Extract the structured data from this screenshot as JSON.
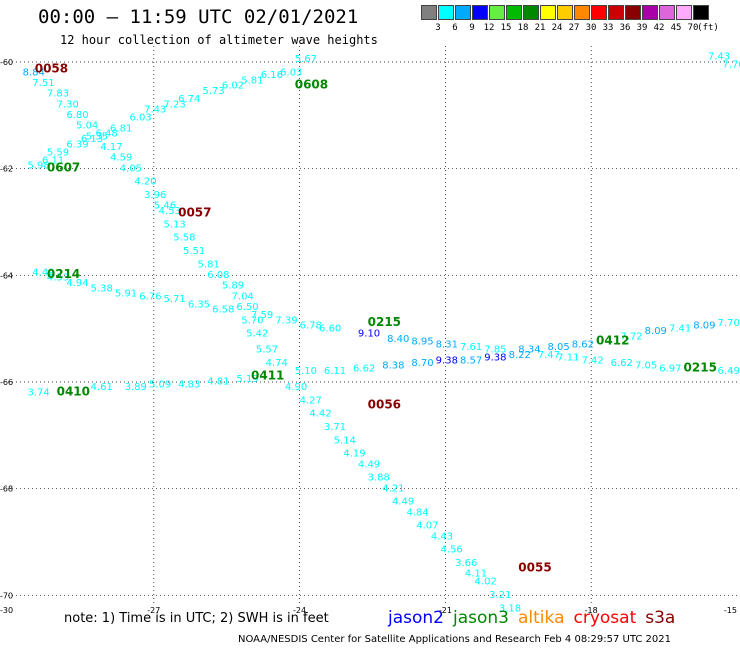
{
  "header": {
    "title": "00:00 – 11:59 UTC 02/01/2021",
    "subtitle": "12 hour collection of altimeter wave heights"
  },
  "legend": {
    "unit": "(ft)",
    "bins": [
      {
        "label": "3",
        "color": "#808080"
      },
      {
        "label": "6",
        "color": "#00ffff"
      },
      {
        "label": "9",
        "color": "#00aaff"
      },
      {
        "label": "12",
        "color": "#0000ff"
      },
      {
        "label": "15",
        "color": "#66ee44"
      },
      {
        "label": "18",
        "color": "#00bb00"
      },
      {
        "label": "21",
        "color": "#008800"
      },
      {
        "label": "24",
        "color": "#ffff00"
      },
      {
        "label": "27",
        "color": "#ffcc00"
      },
      {
        "label": "30",
        "color": "#ff8800"
      },
      {
        "label": "33",
        "color": "#ff0000"
      },
      {
        "label": "36",
        "color": "#cc0000"
      },
      {
        "label": "39",
        "color": "#880000"
      },
      {
        "label": "42",
        "color": "#aa00aa"
      },
      {
        "label": "45",
        "color": "#dd66dd"
      },
      {
        "label": "70",
        "color": "#ffaaff"
      },
      {
        "label": "",
        "color": "#000000"
      }
    ]
  },
  "axes": {
    "lat_labels": [
      "-60",
      "-62",
      "-64",
      "-66",
      "-68",
      "-70"
    ],
    "lat_values": [
      -60,
      -62,
      -64,
      -66,
      -68,
      -70
    ],
    "lon_labels": [
      "-30",
      "-27",
      "-24",
      "-21",
      "-18",
      "-15"
    ],
    "lon_values": [
      -30,
      -27,
      -24,
      -21,
      -18,
      -15
    ],
    "lat_range": [
      -70.2,
      -59.7
    ],
    "lon_range": [
      -30,
      -15
    ],
    "grid": "dotted"
  },
  "footer": {
    "note": "note:  1) Time is in UTC;  2) SWH is in feet",
    "credit": "NOAA/NESDIS Center for Satellite Applications and Research     Feb  4 08:29:57 UTC 2021",
    "satellites": [
      {
        "name": "jason2",
        "color": "#0000ff"
      },
      {
        "name": "jason3",
        "color": "#008800"
      },
      {
        "name": "altika",
        "color": "#ff8800"
      },
      {
        "name": "cryosat",
        "color": "#ff0000"
      },
      {
        "name": "s3a",
        "color": "#880000"
      }
    ]
  },
  "passes": [
    {
      "time": "0058",
      "color": "#880000",
      "lon": -29.45,
      "lat": -60.2
    },
    {
      "time": "0608",
      "color": "#008800",
      "lon": -24.1,
      "lat": -60.5
    },
    {
      "time": "0607",
      "color": "#008800",
      "lon": -29.2,
      "lat": -62.05
    },
    {
      "time": "0057",
      "color": "#880000",
      "lon": -26.5,
      "lat": -62.9
    },
    {
      "time": "0214",
      "color": "#008800",
      "lon": -29.2,
      "lat": -64.05
    },
    {
      "time": "0215",
      "color": "#008800",
      "lon": -22.6,
      "lat": -64.95
    },
    {
      "time": "0412",
      "color": "#008800",
      "lon": -17.9,
      "lat": -65.3
    },
    {
      "time": "0215",
      "color": "#008800",
      "lon": -16.1,
      "lat": -65.8
    },
    {
      "time": "0411",
      "color": "#008800",
      "lon": -25.0,
      "lat": -65.95
    },
    {
      "time": "0410",
      "color": "#008800",
      "lon": -29.0,
      "lat": -66.25
    },
    {
      "time": "0056",
      "color": "#880000",
      "lon": -22.6,
      "lat": -66.5
    },
    {
      "time": "0055",
      "color": "#880000",
      "lon": -19.5,
      "lat": -69.55
    }
  ],
  "observations": [
    {
      "v": "8.84",
      "lon": -29.7,
      "lat": -60.25,
      "c": "#00aaff"
    },
    {
      "v": "7.51",
      "lon": -29.5,
      "lat": -60.45,
      "c": "#00ffff"
    },
    {
      "v": "7.83",
      "lon": -29.2,
      "lat": -60.65,
      "c": "#00ffff"
    },
    {
      "v": "7.30",
      "lon": -29.0,
      "lat": -60.85,
      "c": "#00ffff"
    },
    {
      "v": "6.80",
      "lon": -28.8,
      "lat": -61.05,
      "c": "#00ffff"
    },
    {
      "v": "5.04",
      "lon": -28.6,
      "lat": -61.25,
      "c": "#00ffff"
    },
    {
      "v": "5.35",
      "lon": -28.4,
      "lat": -61.45,
      "c": "#00ffff"
    },
    {
      "v": "4.17",
      "lon": -28.1,
      "lat": -61.65,
      "c": "#00ffff"
    },
    {
      "v": "4.59",
      "lon": -27.9,
      "lat": -61.85,
      "c": "#00ffff"
    },
    {
      "v": "4.05",
      "lon": -27.7,
      "lat": -62.05,
      "c": "#00ffff"
    },
    {
      "v": "4.20",
      "lon": -27.4,
      "lat": -62.3,
      "c": "#00ffff"
    },
    {
      "v": "3.96",
      "lon": -27.2,
      "lat": -62.55,
      "c": "#00ffff"
    },
    {
      "v": "5.46",
      "lon": -27.0,
      "lat": -62.75,
      "c": "#00ffff"
    },
    {
      "v": "4.53",
      "lon": -26.9,
      "lat": -62.85,
      "c": "#00ffff"
    },
    {
      "v": "5.13",
      "lon": -26.8,
      "lat": -63.1,
      "c": "#00ffff"
    },
    {
      "v": "5.58",
      "lon": -26.6,
      "lat": -63.35,
      "c": "#00ffff"
    },
    {
      "v": "5.51",
      "lon": -26.4,
      "lat": -63.6,
      "c": "#00ffff"
    },
    {
      "v": "5.81",
      "lon": -26.1,
      "lat": -63.85,
      "c": "#00ffff"
    },
    {
      "v": "6.08",
      "lon": -25.9,
      "lat": -64.05,
      "c": "#00ffff"
    },
    {
      "v": "5.89",
      "lon": -25.6,
      "lat": -64.25,
      "c": "#00ffff"
    },
    {
      "v": "7.04",
      "lon": -25.4,
      "lat": -64.45,
      "c": "#00ffff"
    },
    {
      "v": "6.50",
      "lon": -25.3,
      "lat": -64.65,
      "c": "#00ffff"
    },
    {
      "v": "5.70",
      "lon": -25.2,
      "lat": -64.9,
      "c": "#00ffff"
    },
    {
      "v": "5.42",
      "lon": -25.1,
      "lat": -65.15,
      "c": "#00ffff"
    },
    {
      "v": "5.57",
      "lon": -24.9,
      "lat": -65.45,
      "c": "#00ffff"
    },
    {
      "v": "4.74",
      "lon": -24.7,
      "lat": -65.7,
      "c": "#00ffff"
    },
    {
      "v": "4.90",
      "lon": -24.3,
      "lat": -66.15,
      "c": "#00ffff"
    },
    {
      "v": "4.27",
      "lon": -24.0,
      "lat": -66.4,
      "c": "#00ffff"
    },
    {
      "v": "4.42",
      "lon": -23.8,
      "lat": -66.65,
      "c": "#00ffff"
    },
    {
      "v": "3.71",
      "lon": -23.5,
      "lat": -66.9,
      "c": "#00ffff"
    },
    {
      "v": "5.14",
      "lon": -23.3,
      "lat": -67.15,
      "c": "#00ffff"
    },
    {
      "v": "4.19",
      "lon": -23.1,
      "lat": -67.4,
      "c": "#00ffff"
    },
    {
      "v": "4.49",
      "lon": -22.8,
      "lat": -67.6,
      "c": "#00ffff"
    },
    {
      "v": "3.88",
      "lon": -22.6,
      "lat": -67.85,
      "c": "#00ffff"
    },
    {
      "v": "4.21",
      "lon": -22.3,
      "lat": -68.05,
      "c": "#00ffff"
    },
    {
      "v": "4.49",
      "lon": -22.1,
      "lat": -68.3,
      "c": "#00ffff"
    },
    {
      "v": "4.84",
      "lon": -21.8,
      "lat": -68.5,
      "c": "#00ffff"
    },
    {
      "v": "4.07",
      "lon": -21.6,
      "lat": -68.75,
      "c": "#00ffff"
    },
    {
      "v": "4.43",
      "lon": -21.3,
      "lat": -68.95,
      "c": "#00ffff"
    },
    {
      "v": "4.56",
      "lon": -21.1,
      "lat": -69.2,
      "c": "#00ffff"
    },
    {
      "v": "3.66",
      "lon": -20.8,
      "lat": -69.45,
      "c": "#00ffff"
    },
    {
      "v": "4.11",
      "lon": -20.6,
      "lat": -69.65,
      "c": "#00ffff"
    },
    {
      "v": "4.02",
      "lon": -20.4,
      "lat": -69.8,
      "c": "#00ffff"
    },
    {
      "v": "3.21",
      "lon": -20.1,
      "lat": -70.05,
      "c": "#00ffff"
    },
    {
      "v": "3.18",
      "lon": -19.9,
      "lat": -70.3,
      "c": "#00ffff"
    },
    {
      "v": "5.98",
      "lon": -29.6,
      "lat": -62.0,
      "c": "#00ffff"
    },
    {
      "v": "6.11",
      "lon": -29.3,
      "lat": -61.9,
      "c": "#00ffff"
    },
    {
      "v": "5.59",
      "lon": -29.2,
      "lat": -61.75,
      "c": "#00ffff"
    },
    {
      "v": "6.39",
      "lon": -28.8,
      "lat": -61.6,
      "c": "#00ffff"
    },
    {
      "v": "6.13",
      "lon": -28.5,
      "lat": -61.5,
      "c": "#00ffff"
    },
    {
      "v": "6.48",
      "lon": -28.2,
      "lat": -61.4,
      "c": "#00ffff"
    },
    {
      "v": "6.81",
      "lon": -27.9,
      "lat": -61.3,
      "c": "#00ffff"
    },
    {
      "v": "6.03",
      "lon": -27.5,
      "lat": -61.1,
      "c": "#00ffff"
    },
    {
      "v": "7.43",
      "lon": -27.2,
      "lat": -60.95,
      "c": "#00ffff"
    },
    {
      "v": "7.23",
      "lon": -26.8,
      "lat": -60.85,
      "c": "#00ffff"
    },
    {
      "v": "6.74",
      "lon": -26.5,
      "lat": -60.75,
      "c": "#00ffff"
    },
    {
      "v": "5.73",
      "lon": -26.0,
      "lat": -60.6,
      "c": "#00ffff"
    },
    {
      "v": "6.02",
      "lon": -25.6,
      "lat": -60.5,
      "c": "#00ffff"
    },
    {
      "v": "5.81",
      "lon": -25.2,
      "lat": -60.4,
      "c": "#00ffff"
    },
    {
      "v": "6.16",
      "lon": -24.8,
      "lat": -60.3,
      "c": "#00ffff"
    },
    {
      "v": "6.03",
      "lon": -24.4,
      "lat": -60.25,
      "c": "#00ffff"
    },
    {
      "v": "5.67",
      "lon": -24.1,
      "lat": -60.0,
      "c": "#00ffff"
    },
    {
      "v": "7.43",
      "lon": -15.6,
      "lat": -59.95,
      "c": "#00ffff"
    },
    {
      "v": "7.70",
      "lon": -15.3,
      "lat": -60.1,
      "c": "#00ffff"
    },
    {
      "v": "4.49",
      "lon": -29.5,
      "lat": -64.0,
      "c": "#00ffff"
    },
    {
      "v": "4.53",
      "lon": -29.2,
      "lat": -64.1,
      "c": "#00ffff"
    },
    {
      "v": "4.94",
      "lon": -28.8,
      "lat": -64.2,
      "c": "#00ffff"
    },
    {
      "v": "5.38",
      "lon": -28.3,
      "lat": -64.3,
      "c": "#00ffff"
    },
    {
      "v": "5.91",
      "lon": -27.8,
      "lat": -64.4,
      "c": "#00ffff"
    },
    {
      "v": "6.76",
      "lon": -27.3,
      "lat": -64.45,
      "c": "#00ffff"
    },
    {
      "v": "5.71",
      "lon": -26.8,
      "lat": -64.5,
      "c": "#00ffff"
    },
    {
      "v": "6.35",
      "lon": -26.3,
      "lat": -64.6,
      "c": "#00ffff"
    },
    {
      "v": "6.58",
      "lon": -25.8,
      "lat": -64.7,
      "c": "#00ffff"
    },
    {
      "v": "7.59",
      "lon": -25.0,
      "lat": -64.8,
      "c": "#00ffff"
    },
    {
      "v": "7.39",
      "lon": -24.5,
      "lat": -64.9,
      "c": "#00ffff"
    },
    {
      "v": "6.78",
      "lon": -24.0,
      "lat": -65.0,
      "c": "#00ffff"
    },
    {
      "v": "6.60",
      "lon": -23.6,
      "lat": -65.05,
      "c": "#00ffff"
    },
    {
      "v": "9.10",
      "lon": -22.8,
      "lat": -65.15,
      "c": "#0000ff"
    },
    {
      "v": "8.40",
      "lon": -22.2,
      "lat": -65.25,
      "c": "#00aaff"
    },
    {
      "v": "8.95",
      "lon": -21.7,
      "lat": -65.3,
      "c": "#00aaff"
    },
    {
      "v": "8.31",
      "lon": -21.2,
      "lat": -65.35,
      "c": "#00aaff"
    },
    {
      "v": "7.61",
      "lon": -20.7,
      "lat": -65.4,
      "c": "#00ffff"
    },
    {
      "v": "7.85",
      "lon": -20.2,
      "lat": -65.45,
      "c": "#00ffff"
    },
    {
      "v": "8.34",
      "lon": -19.5,
      "lat": -65.45,
      "c": "#00aaff"
    },
    {
      "v": "8.05",
      "lon": -18.9,
      "lat": -65.4,
      "c": "#00aaff"
    },
    {
      "v": "8.62",
      "lon": -18.4,
      "lat": -65.35,
      "c": "#00aaff"
    },
    {
      "v": "7.72",
      "lon": -17.4,
      "lat": -65.2,
      "c": "#00ffff"
    },
    {
      "v": "8.09",
      "lon": -16.9,
      "lat": -65.1,
      "c": "#00aaff"
    },
    {
      "v": "7.41",
      "lon": -16.4,
      "lat": -65.05,
      "c": "#00ffff"
    },
    {
      "v": "8.09",
      "lon": -15.9,
      "lat": -65.0,
      "c": "#00aaff"
    },
    {
      "v": "7.70",
      "lon": -15.4,
      "lat": -64.95,
      "c": "#00ffff"
    },
    {
      "v": "3.74",
      "lon": -29.6,
      "lat": -66.25,
      "c": "#00ffff"
    },
    {
      "v": "4.61",
      "lon": -28.3,
      "lat": -66.15,
      "c": "#00ffff"
    },
    {
      "v": "3.89",
      "lon": -27.6,
      "lat": -66.15,
      "c": "#00ffff"
    },
    {
      "v": "5.09",
      "lon": -27.1,
      "lat": -66.1,
      "c": "#00ffff"
    },
    {
      "v": "4.83",
      "lon": -26.5,
      "lat": -66.1,
      "c": "#00ffff"
    },
    {
      "v": "4.81",
      "lon": -25.9,
      "lat": -66.05,
      "c": "#00ffff"
    },
    {
      "v": "5.19",
      "lon": -25.3,
      "lat": -66.0,
      "c": "#00ffff"
    },
    {
      "v": "5.10",
      "lon": -24.1,
      "lat": -65.85,
      "c": "#00ffff"
    },
    {
      "v": "6.11",
      "lon": -23.5,
      "lat": -65.85,
      "c": "#00ffff"
    },
    {
      "v": "6.62",
      "lon": -22.9,
      "lat": -65.8,
      "c": "#00ffff"
    },
    {
      "v": "8.38",
      "lon": -22.3,
      "lat": -65.75,
      "c": "#00aaff"
    },
    {
      "v": "8.70",
      "lon": -21.7,
      "lat": -65.7,
      "c": "#00aaff"
    },
    {
      "v": "9.38",
      "lon": -21.2,
      "lat": -65.65,
      "c": "#0000ff"
    },
    {
      "v": "8.57",
      "lon": -20.7,
      "lat": -65.65,
      "c": "#00aaff"
    },
    {
      "v": "9.38",
      "lon": -20.2,
      "lat": -65.6,
      "c": "#0000ff"
    },
    {
      "v": "8.22",
      "lon": -19.7,
      "lat": -65.55,
      "c": "#00aaff"
    },
    {
      "v": "7.47",
      "lon": -19.1,
      "lat": -65.55,
      "c": "#00ffff"
    },
    {
      "v": "7.11",
      "lon": -18.7,
      "lat": -65.6,
      "c": "#00ffff"
    },
    {
      "v": "7.42",
      "lon": -18.2,
      "lat": -65.65,
      "c": "#00ffff"
    },
    {
      "v": "6.62",
      "lon": -17.6,
      "lat": -65.7,
      "c": "#00ffff"
    },
    {
      "v": "7.05",
      "lon": -17.1,
      "lat": -65.75,
      "c": "#00ffff"
    },
    {
      "v": "6.97",
      "lon": -16.6,
      "lat": -65.8,
      "c": "#00ffff"
    },
    {
      "v": "6.49",
      "lon": -15.4,
      "lat": -65.85,
      "c": "#00ffff"
    }
  ]
}
